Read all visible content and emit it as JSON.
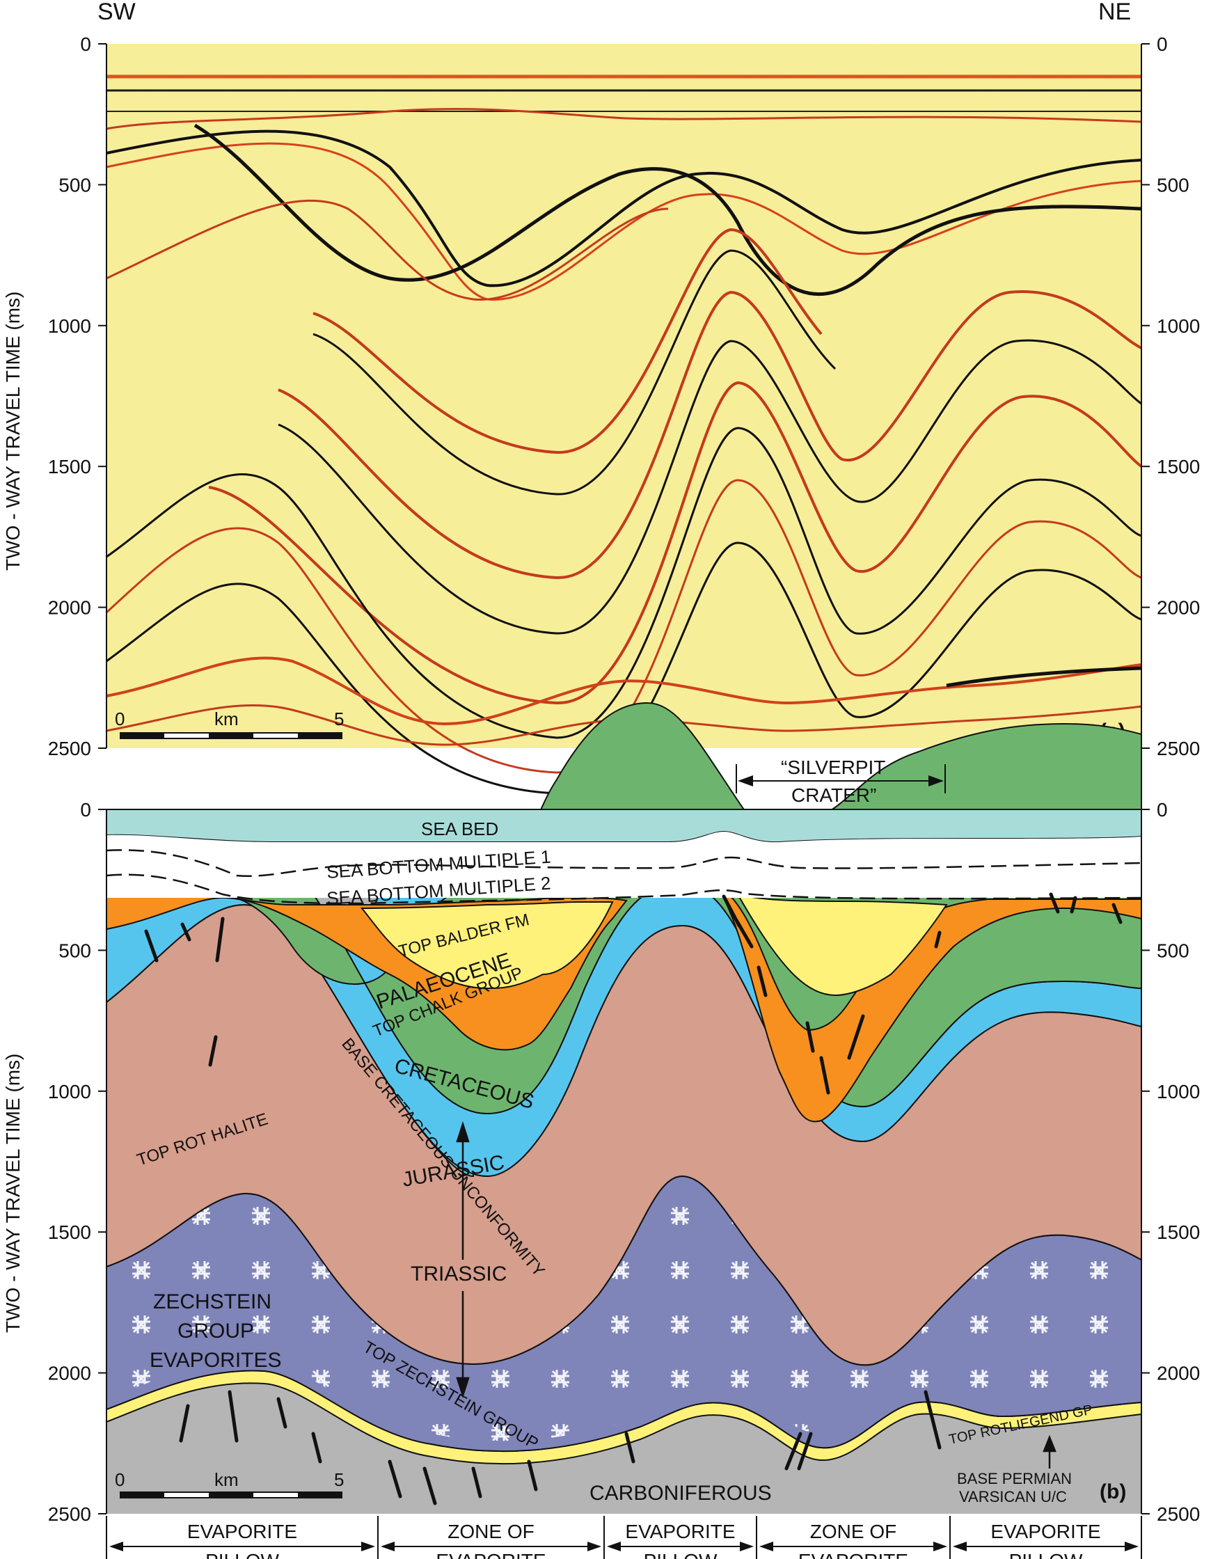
{
  "directions": {
    "left": "SW",
    "right": "NE"
  },
  "axis": {
    "ylabel": "TWO - WAY TRAVEL TIME (ms)",
    "units": "ms",
    "ticks": [
      "0",
      "500",
      "1000",
      "1500",
      "2000",
      "2500"
    ]
  },
  "panel_a": {
    "label": "(a)"
  },
  "panel_b": {
    "label": "(b)"
  },
  "scale_bar": {
    "start": "0",
    "unit": "km",
    "end": "5"
  },
  "crater_annotation": {
    "line1": "“SILVERPIT",
    "line2": "CRATER”"
  },
  "horizons": {
    "sea_bed": "SEA BED",
    "multiple1": "SEA BOTTOM MULTIPLE 1",
    "multiple2": "SEA BOTTOM MULTIPLE 2",
    "top_balder": "TOP BALDER FM",
    "palaeocene": "PALAEOCENE",
    "top_chalk": "TOP CHALK GROUP",
    "cretaceous": "CRETACEOUS",
    "base_cret": "BASE CRETACEOUS UNCONFORMITY",
    "top_rot": "TOP ROT HALITE",
    "jurassic": "JURASSIC",
    "triassic": "TRIASSIC",
    "zechstein1": "ZECHSTEIN",
    "zechstein2": "GROUP",
    "zechstein3": "EVAPORITES",
    "top_zech": "TOP ZECHSTEIN GROUP",
    "top_rotl": "TOP ROTLIEGEND GP",
    "base_perm1": "BASE PERMIAN",
    "base_perm2": "VARSICAN U/C",
    "carboniferous": "CARBONIFEROUS"
  },
  "zones": [
    {
      "line1": "EVAPORITE",
      "line2": "PILLOW"
    },
    {
      "line1": "ZONE OF",
      "line2": "EVAPORITE"
    },
    {
      "line1": "EVAPORITE",
      "line2": "PILLOW"
    },
    {
      "line1": "ZONE OF",
      "line2": "EVAPORITE"
    },
    {
      "line1": "EVAPORITE",
      "line2": "PILLOW"
    }
  ],
  "colors": {
    "sea": "#a8dcd9",
    "eocene": "#fff27a",
    "palaeocene": "#f7901e",
    "chalk": "#6db56e",
    "jurassic": "#56c5ee",
    "triassic": "#d69e8c",
    "zechstein": "#7f84b9",
    "rotliegend": "#fff27a",
    "carboniferous": "#b5b5b5"
  }
}
